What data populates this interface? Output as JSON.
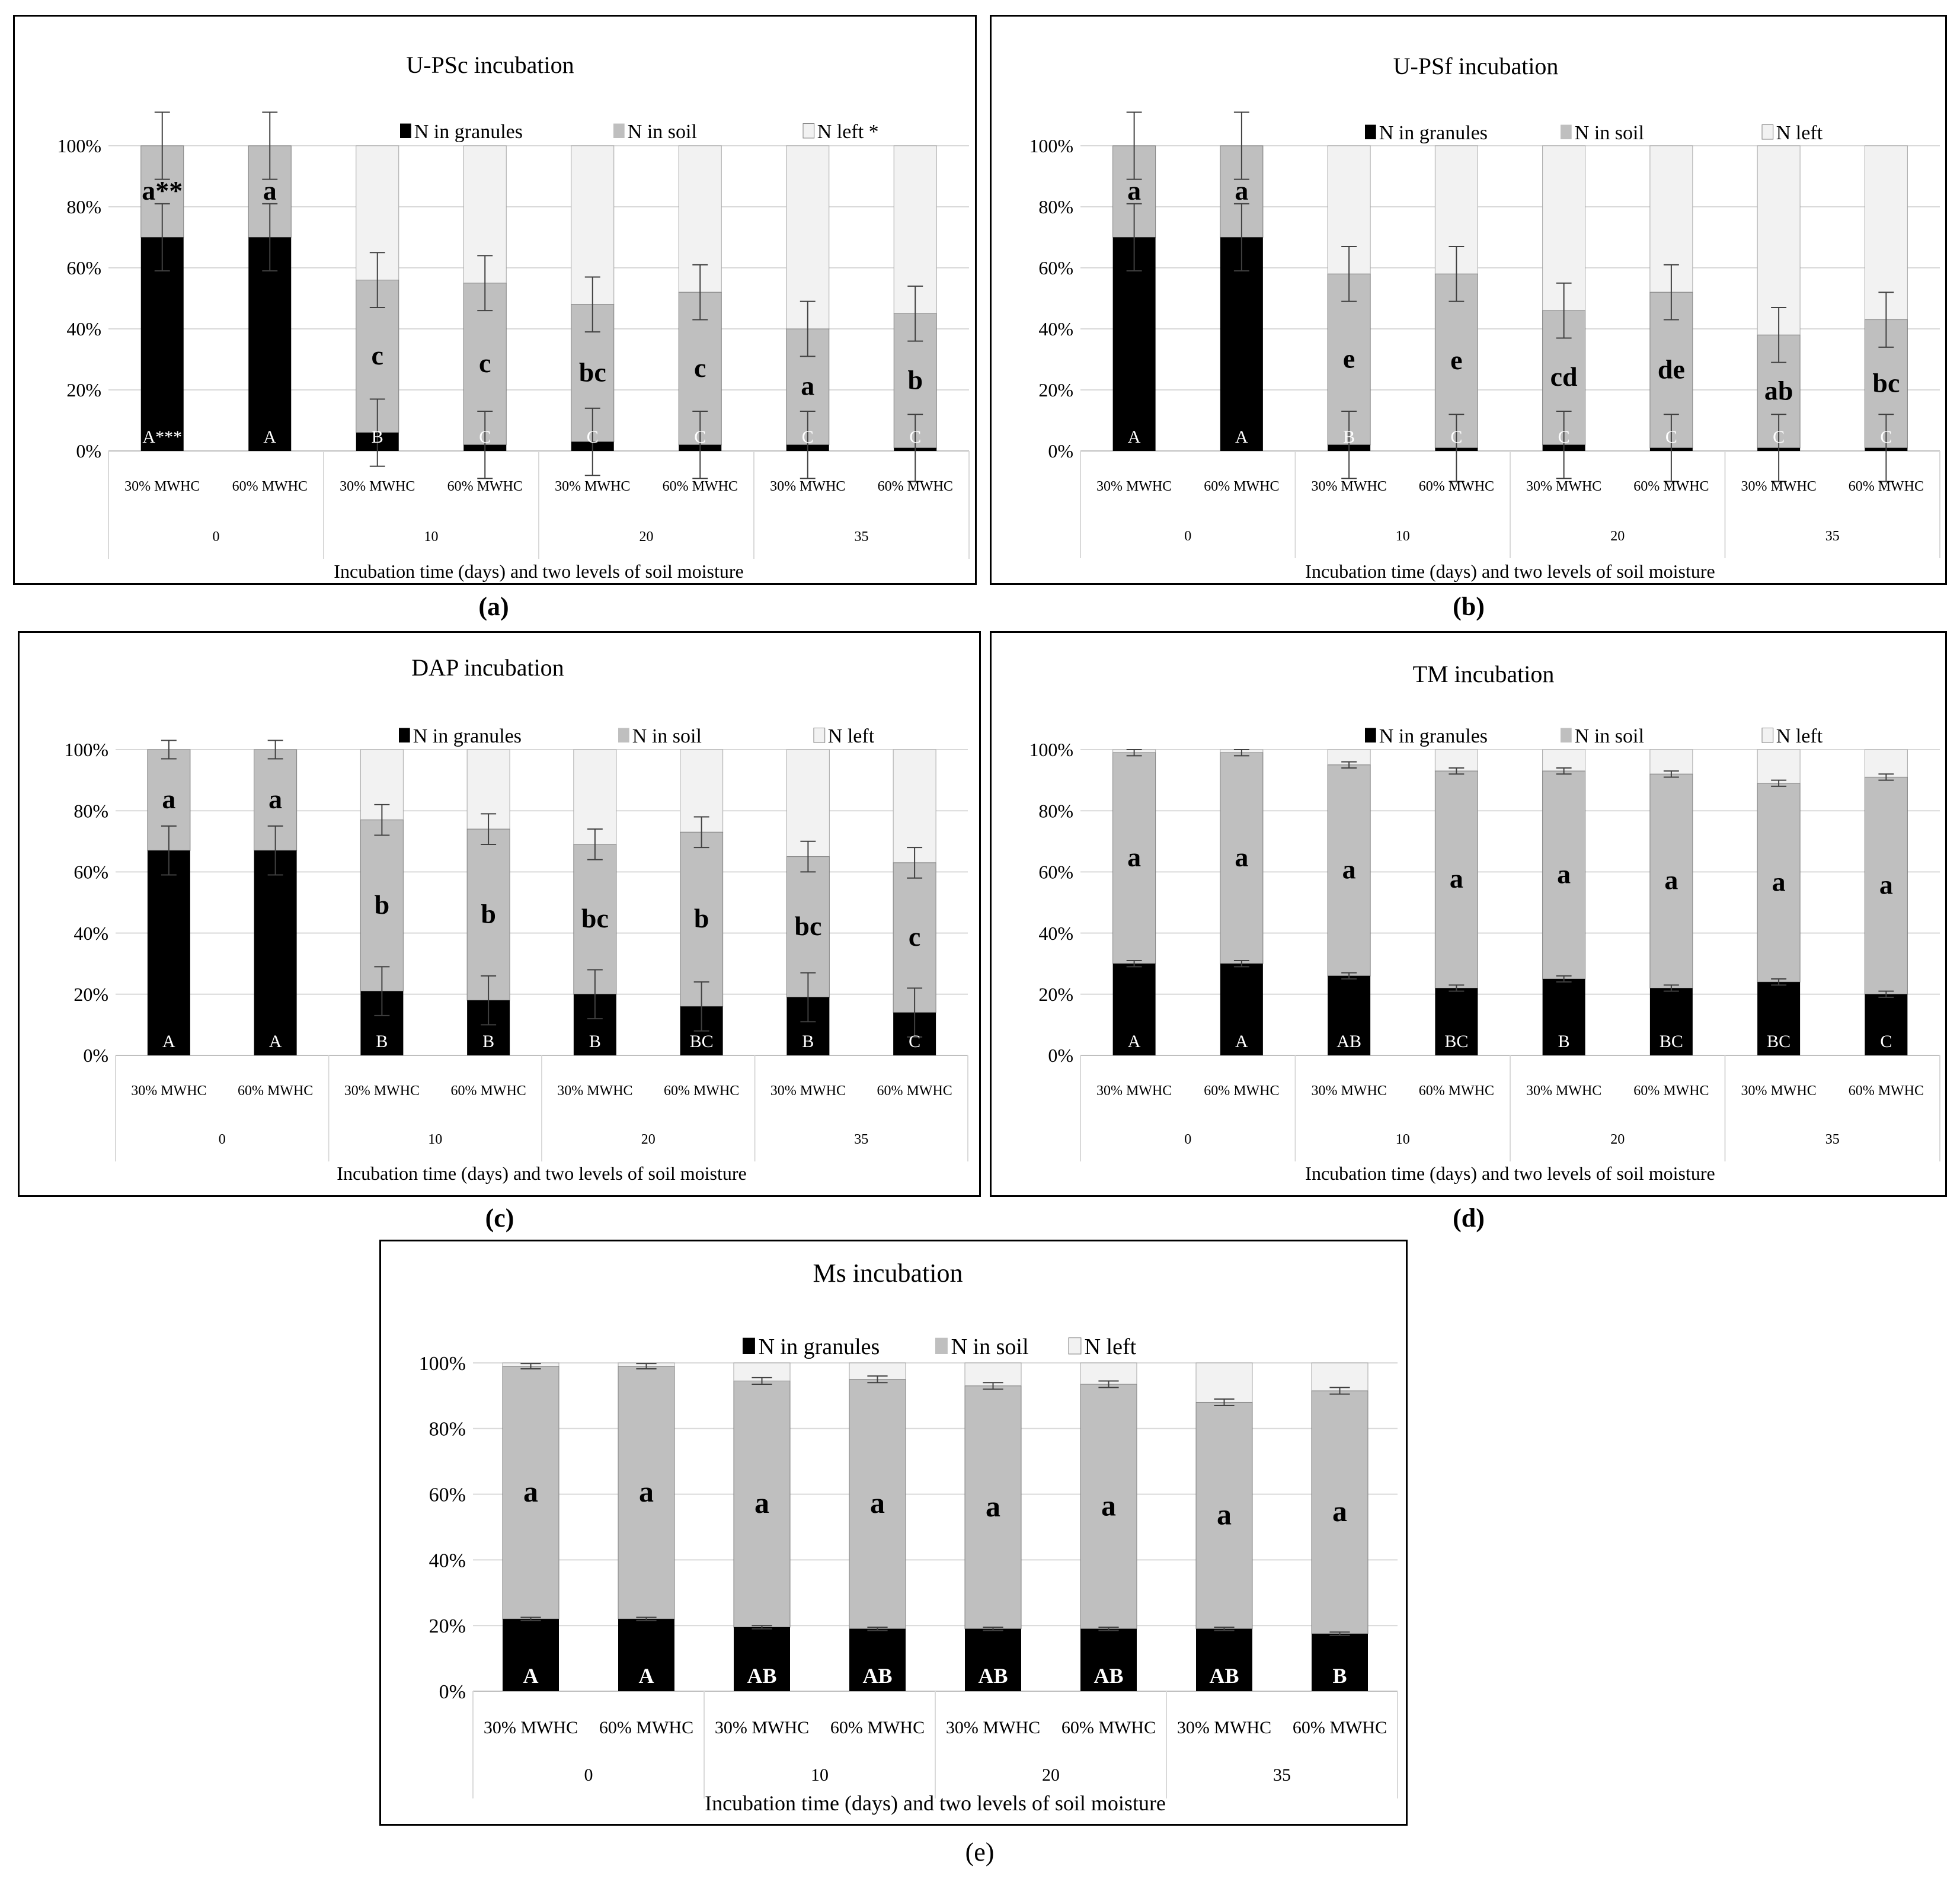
{
  "chart_data": [
    {
      "id": "a",
      "type": "bar",
      "stacked": true,
      "title": "U-PSc incubation",
      "xlabel": "Incubation time (days) and two levels of soil moisture",
      "ylabel": "",
      "ylim": [
        0,
        100
      ],
      "yticks": [
        "0%",
        "20%",
        "40%",
        "60%",
        "80%",
        "100%"
      ],
      "legend": [
        "N in granules",
        "N in soil",
        "N left *"
      ],
      "categories": [
        "30% MWHC",
        "60% MWHC",
        "30% MWHC",
        "60% MWHC",
        "30% MWHC",
        "60% MWHC",
        "30% MWHC",
        "60% MWHC"
      ],
      "groups": [
        "0",
        "10",
        "20",
        "35"
      ],
      "series": [
        {
          "name": "N in granules",
          "values": [
            70,
            70,
            6,
            2,
            3,
            2,
            2,
            1
          ],
          "errors": [
            11,
            11,
            11,
            11,
            11,
            11,
            11,
            11
          ],
          "letters": [
            "A***",
            "A",
            "B",
            "C",
            "C",
            "C",
            "C",
            "C"
          ]
        },
        {
          "name": "N in soil",
          "values": [
            30,
            30,
            50,
            53,
            45,
            50,
            38,
            44
          ],
          "errors": [
            11,
            11,
            9,
            9,
            9,
            9,
            9,
            9
          ],
          "letters": [
            "a**",
            "a",
            "c",
            "c",
            "bc",
            "c",
            "a",
            "b"
          ]
        },
        {
          "name": "N left *",
          "values": [
            0,
            0,
            44,
            45,
            52,
            48,
            60,
            55
          ]
        }
      ]
    },
    {
      "id": "b",
      "type": "bar",
      "stacked": true,
      "title": "U-PSf incubation",
      "xlabel": "Incubation time (days) and two levels of soil moisture",
      "ylabel": "",
      "ylim": [
        0,
        100
      ],
      "yticks": [
        "0%",
        "20%",
        "40%",
        "60%",
        "80%",
        "100%"
      ],
      "legend": [
        "N in granules",
        "N in soil",
        "N left"
      ],
      "categories": [
        "30% MWHC",
        "60% MWHC",
        "30% MWHC",
        "60% MWHC",
        "30% MWHC",
        "60% MWHC",
        "30% MWHC",
        "60% MWHC"
      ],
      "groups": [
        "0",
        "10",
        "20",
        "35"
      ],
      "series": [
        {
          "name": "N in granules",
          "values": [
            70,
            70,
            2,
            1,
            2,
            1,
            1,
            1
          ],
          "errors": [
            11,
            11,
            11,
            11,
            11,
            11,
            11,
            11
          ],
          "letters": [
            "A",
            "A",
            "B",
            "C",
            "C",
            "C",
            "C",
            "C"
          ]
        },
        {
          "name": "N in soil",
          "values": [
            30,
            30,
            56,
            57,
            44,
            51,
            37,
            42
          ],
          "errors": [
            11,
            11,
            9,
            9,
            9,
            9,
            9,
            9
          ],
          "letters": [
            "a",
            "a",
            "e",
            "e",
            "cd",
            "de",
            "ab",
            "bc"
          ]
        },
        {
          "name": "N left",
          "values": [
            0,
            0,
            42,
            42,
            54,
            48,
            62,
            57
          ]
        }
      ]
    },
    {
      "id": "c",
      "type": "bar",
      "stacked": true,
      "title": "DAP incubation",
      "xlabel": "Incubation time (days) and two levels of soil moisture",
      "ylabel": "",
      "ylim": [
        0,
        100
      ],
      "yticks": [
        "0%",
        "20%",
        "40%",
        "60%",
        "80%",
        "100%"
      ],
      "legend": [
        "N in granules",
        "N in soil",
        "N left"
      ],
      "categories": [
        "30% MWHC",
        "60% MWHC",
        "30% MWHC",
        "60% MWHC",
        "30% MWHC",
        "60% MWHC",
        "30% MWHC",
        "60% MWHC"
      ],
      "groups": [
        "0",
        "10",
        "20",
        "35"
      ],
      "series": [
        {
          "name": "N in granules",
          "values": [
            67,
            67,
            21,
            18,
            20,
            16,
            19,
            14
          ],
          "errors": [
            8,
            8,
            8,
            8,
            8,
            8,
            8,
            8
          ],
          "letters": [
            "A",
            "A",
            "B",
            "B",
            "B",
            "BC",
            "B",
            "C"
          ]
        },
        {
          "name": "N in soil",
          "values": [
            33,
            33,
            56,
            56,
            49,
            57,
            46,
            49
          ],
          "errors": [
            3,
            3,
            5,
            5,
            5,
            5,
            5,
            5
          ],
          "letters": [
            "a",
            "a",
            "b",
            "b",
            "bc",
            "b",
            "bc",
            "c"
          ]
        },
        {
          "name": "N left",
          "values": [
            0,
            0,
            23,
            26,
            31,
            27,
            35,
            37
          ]
        }
      ]
    },
    {
      "id": "d",
      "type": "bar",
      "stacked": true,
      "title": "TM incubation",
      "xlabel": "Incubation time (days) and two levels of soil moisture",
      "ylabel": "",
      "ylim": [
        0,
        100
      ],
      "yticks": [
        "0%",
        "20%",
        "40%",
        "60%",
        "80%",
        "100%"
      ],
      "legend": [
        "N in granules",
        "N in soil",
        "N left"
      ],
      "categories": [
        "30% MWHC",
        "60% MWHC",
        "30% MWHC",
        "60% MWHC",
        "30% MWHC",
        "60% MWHC",
        "30% MWHC",
        "60% MWHC"
      ],
      "groups": [
        "0",
        "10",
        "20",
        "35"
      ],
      "series": [
        {
          "name": "N in granules",
          "values": [
            30,
            30,
            26,
            22,
            25,
            22,
            24,
            20
          ],
          "errors": [
            1,
            1,
            1,
            1,
            1,
            1,
            1,
            1
          ],
          "letters": [
            "A",
            "A",
            "AB",
            "BC",
            "B",
            "BC",
            "BC",
            "C"
          ]
        },
        {
          "name": "N in soil",
          "values": [
            69,
            69,
            69,
            71,
            68,
            70,
            65,
            71
          ],
          "errors": [
            1,
            1,
            1,
            1,
            1,
            1,
            1,
            1
          ],
          "letters": [
            "a",
            "a",
            "a",
            "a",
            "a",
            "a",
            "a",
            "a"
          ]
        },
        {
          "name": "N left",
          "values": [
            1,
            1,
            5,
            7,
            7,
            8,
            11,
            9
          ]
        }
      ]
    },
    {
      "id": "e",
      "type": "bar",
      "stacked": true,
      "title": "Ms incubation",
      "xlabel": "Incubation time (days) and two levels of soil moisture",
      "ylabel": "",
      "ylim": [
        0,
        100
      ],
      "yticks": [
        "0%",
        "20%",
        "40%",
        "60%",
        "80%",
        "100%"
      ],
      "legend": [
        "N in granules",
        "N in soil",
        "N left"
      ],
      "categories": [
        "30% MWHC",
        "60% MWHC",
        "30% MWHC",
        "60% MWHC",
        "30% MWHC",
        "60% MWHC",
        "30% MWHC",
        "60% MWHC"
      ],
      "groups": [
        "0",
        "10",
        "20",
        "35"
      ],
      "series": [
        {
          "name": "N in granules",
          "values": [
            22,
            22,
            19.5,
            19,
            19,
            19,
            19,
            17.5
          ],
          "errors": [
            0.5,
            0.5,
            0.5,
            0.5,
            0.5,
            0.5,
            0.5,
            0.5
          ],
          "letters": [
            "A",
            "A",
            "AB",
            "AB",
            "AB",
            "AB",
            "AB",
            "B"
          ]
        },
        {
          "name": "N in soil",
          "values": [
            77,
            77,
            75,
            76,
            74,
            74.5,
            69,
            74
          ],
          "errors": [
            0.8,
            0.8,
            1,
            1,
            1,
            1,
            1,
            1
          ],
          "letters": [
            "a",
            "a",
            "a",
            "a",
            "a",
            "a",
            "a",
            "a"
          ]
        },
        {
          "name": "N left",
          "values": [
            1,
            1,
            5.5,
            5,
            7,
            6.5,
            12,
            8.5
          ]
        }
      ]
    }
  ],
  "panel_labels": [
    "(a)",
    "(b)",
    "(c)",
    "(d)",
    "(e)"
  ],
  "colors": {
    "granules": "#000000",
    "soil": "#bfbfbf",
    "left": "#f2f2f2",
    "grid": "#d9d9d9",
    "error": "#404040"
  }
}
